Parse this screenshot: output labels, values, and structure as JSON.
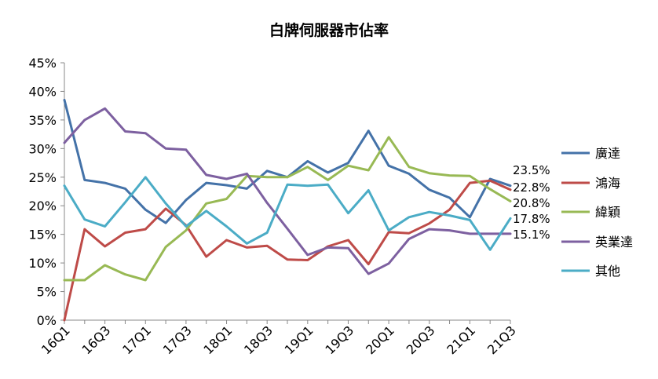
{
  "chart_data": {
    "type": "line",
    "title": "白牌伺服器市佔率",
    "xlabel": "",
    "ylabel": "",
    "ylim": [
      0,
      45
    ],
    "y_ticks": [
      "0%",
      "5%",
      "10%",
      "15%",
      "20%",
      "25%",
      "30%",
      "35%",
      "40%",
      "45%"
    ],
    "x": [
      "16Q1",
      "16Q2",
      "16Q3",
      "16Q4",
      "17Q1",
      "17Q2",
      "17Q3",
      "17Q4",
      "18Q1",
      "18Q2",
      "18Q3",
      "18Q4",
      "19Q1",
      "19Q2",
      "19Q3",
      "19Q4",
      "20Q1",
      "20Q2",
      "20Q3",
      "20Q4",
      "21Q1",
      "21Q2",
      "21Q3"
    ],
    "x_tick_labels": [
      "16Q1",
      "16Q3",
      "17Q1",
      "17Q3",
      "18Q1",
      "18Q3",
      "19Q1",
      "19Q3",
      "20Q1",
      "20Q3",
      "21Q1",
      "21Q3"
    ],
    "grid": false,
    "legend_position": "right",
    "series": [
      {
        "name": "廣達",
        "color": "#4472A8",
        "values": [
          38.5,
          24.5,
          24.0,
          23.0,
          19.3,
          17.0,
          21.0,
          24.0,
          23.6,
          23.0,
          26.1,
          25.0,
          27.8,
          25.8,
          27.5,
          33.1,
          27.0,
          25.6,
          22.8,
          21.4,
          18.0,
          24.7,
          23.5
        ]
      },
      {
        "name": "鴻海",
        "color": "#BE4B48",
        "values": [
          0.0,
          15.9,
          12.9,
          15.3,
          15.9,
          19.5,
          16.6,
          11.1,
          14.0,
          12.7,
          13.0,
          10.6,
          10.5,
          12.9,
          14.0,
          9.8,
          15.4,
          15.2,
          16.9,
          19.3,
          24.0,
          24.4,
          22.8
        ]
      },
      {
        "name": "緯穎",
        "color": "#98B954",
        "values": [
          7.0,
          7.0,
          9.6,
          8.0,
          7.0,
          12.8,
          15.7,
          20.4,
          21.2,
          25.2,
          25.0,
          25.0,
          26.8,
          24.5,
          27.0,
          26.2,
          32.0,
          26.8,
          25.7,
          25.3,
          25.2,
          22.9,
          20.8
        ]
      },
      {
        "name": "英業達",
        "color": "#7D60A0",
        "values": [
          31.0,
          35.0,
          37.0,
          33.0,
          32.7,
          30.0,
          29.8,
          25.4,
          24.7,
          25.6,
          20.5,
          16.0,
          11.4,
          12.7,
          12.6,
          8.1,
          9.9,
          14.2,
          15.9,
          15.7,
          15.1,
          15.1,
          15.1
        ]
      },
      {
        "name": "其他",
        "color": "#4BACC6",
        "values": [
          23.5,
          17.6,
          16.4,
          20.6,
          25.0,
          20.4,
          16.4,
          19.1,
          16.4,
          13.4,
          15.3,
          23.7,
          23.5,
          23.7,
          18.7,
          22.7,
          15.7,
          18.0,
          18.9,
          18.3,
          17.5,
          12.3,
          17.8
        ]
      }
    ],
    "end_labels": [
      "23.5%",
      "22.8%",
      "20.8%",
      "17.8%",
      "15.1%"
    ]
  }
}
